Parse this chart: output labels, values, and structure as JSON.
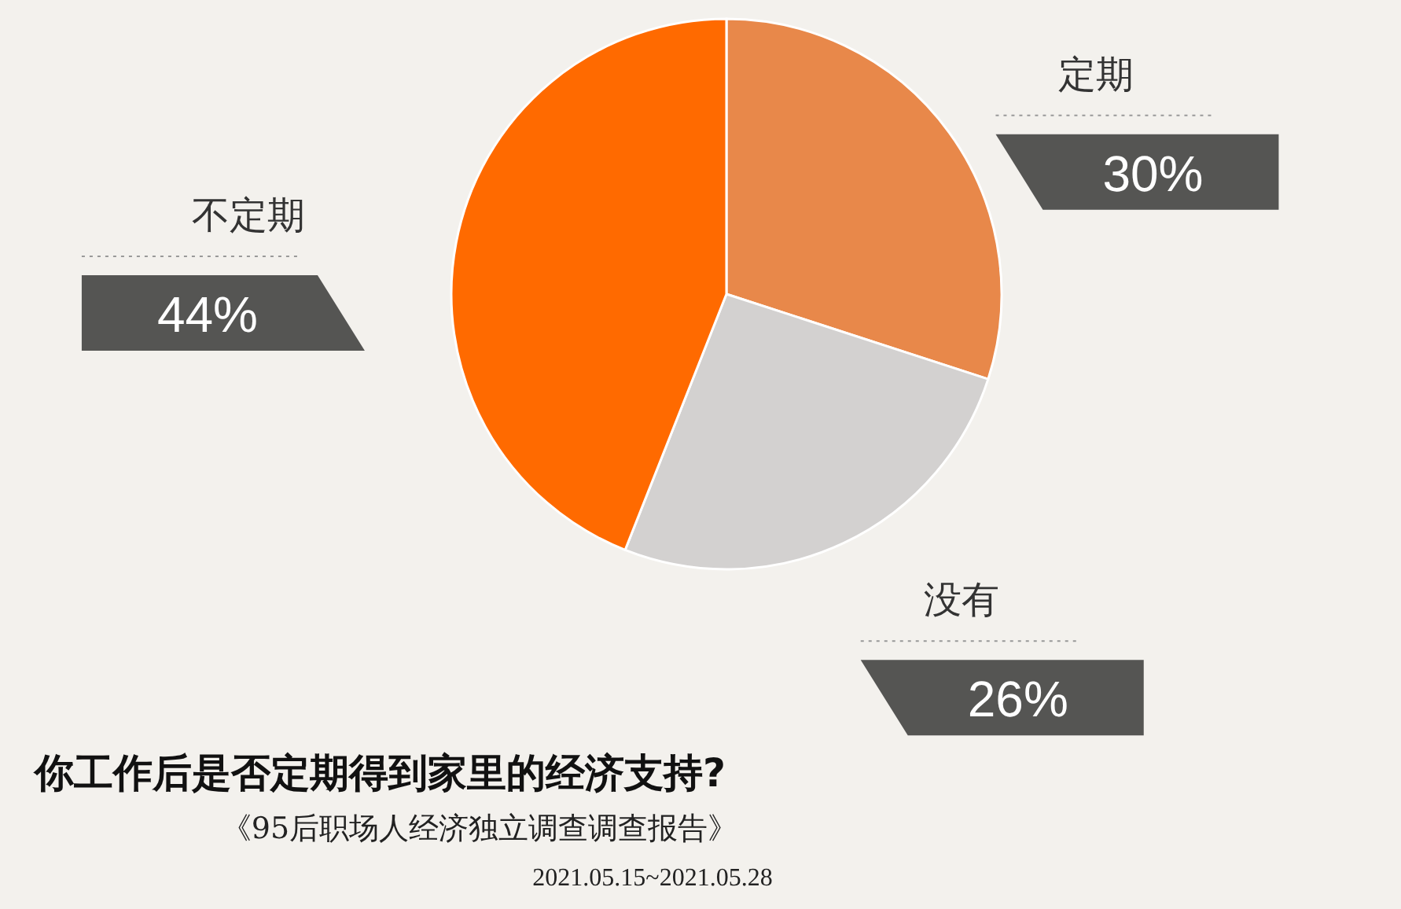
{
  "chart_data": {
    "type": "pie",
    "title": "你工作后是否定期得到家里的经济支持?",
    "subtitle": "《95后职场人经济独立调查调查报告》",
    "annotations": [
      "2021.05.15~2021.05.28"
    ],
    "categories": [
      "定期",
      "没有",
      "不定期"
    ],
    "values": [
      30,
      26,
      44
    ],
    "value_labels": [
      "30%",
      "26%",
      "44%"
    ],
    "colors": [
      "#e8884a",
      "#d3d1d0",
      "#ff6a00"
    ]
  }
}
